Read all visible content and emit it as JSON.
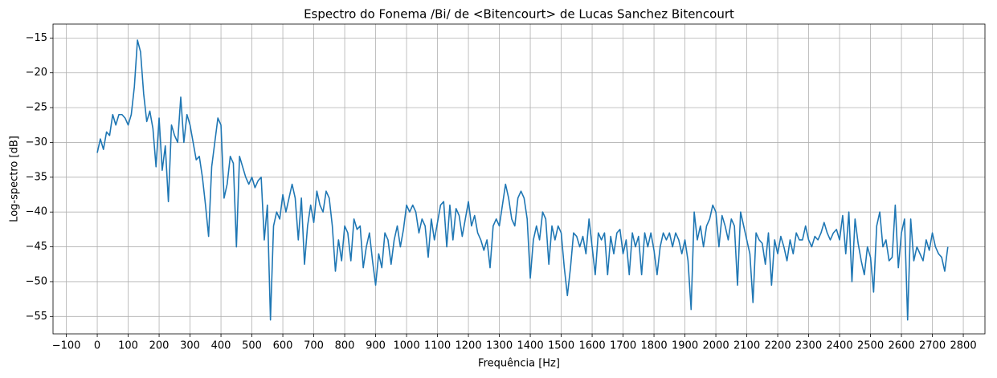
{
  "chart_data": {
    "type": "line",
    "title": "Espectro do Fonema /Bi/ de <Bitencourt> de Lucas Sanchez Bitencourt",
    "xlabel": "Frequência [Hz]",
    "ylabel": "Log-spectro [dB]",
    "xlim": [
      -143,
      2870
    ],
    "ylim": [
      -57.5,
      -13
    ],
    "xticks": [
      {
        "value": -100,
        "label": "−100"
      },
      0,
      100,
      200,
      300,
      400,
      500,
      600,
      700,
      800,
      900,
      1000,
      1100,
      1200,
      1300,
      1400,
      1500,
      1600,
      1700,
      1800,
      1900,
      2000,
      2100,
      2200,
      2300,
      2400,
      2500,
      2600,
      2700,
      2800
    ],
    "yticks": [
      {
        "value": -55,
        "label": "−55"
      },
      {
        "value": -50,
        "label": "−50"
      },
      {
        "value": -45,
        "label": "−45"
      },
      {
        "value": -40,
        "label": "−40"
      },
      {
        "value": -35,
        "label": "−35"
      },
      {
        "value": -30,
        "label": "−30"
      },
      {
        "value": -25,
        "label": "−25"
      },
      {
        "value": -20,
        "label": "−20"
      },
      {
        "value": -15,
        "label": "−15"
      }
    ],
    "grid": true,
    "color": "#1f77b4",
    "x": [
      0,
      10,
      20,
      30,
      40,
      50,
      60,
      70,
      80,
      90,
      100,
      110,
      120,
      130,
      140,
      150,
      160,
      170,
      180,
      190,
      200,
      210,
      220,
      230,
      240,
      250,
      260,
      270,
      280,
      290,
      300,
      310,
      320,
      330,
      340,
      350,
      360,
      370,
      380,
      390,
      400,
      410,
      420,
      430,
      440,
      450,
      460,
      470,
      480,
      490,
      500,
      510,
      520,
      530,
      540,
      550,
      560,
      570,
      580,
      590,
      600,
      610,
      620,
      630,
      640,
      650,
      660,
      670,
      680,
      690,
      700,
      710,
      720,
      730,
      740,
      750,
      760,
      770,
      780,
      790,
      800,
      810,
      820,
      830,
      840,
      850,
      860,
      870,
      880,
      890,
      900,
      910,
      920,
      930,
      940,
      950,
      960,
      970,
      980,
      990,
      1000,
      1010,
      1020,
      1030,
      1040,
      1050,
      1060,
      1070,
      1080,
      1090,
      1100,
      1110,
      1120,
      1130,
      1140,
      1150,
      1160,
      1170,
      1180,
      1190,
      1200,
      1210,
      1220,
      1230,
      1240,
      1250,
      1260,
      1270,
      1280,
      1290,
      1300,
      1310,
      1320,
      1330,
      1340,
      1350,
      1360,
      1370,
      1380,
      1390,
      1400,
      1410,
      1420,
      1430,
      1440,
      1450,
      1460,
      1470,
      1480,
      1490,
      1500,
      1510,
      1520,
      1530,
      1540,
      1550,
      1560,
      1570,
      1580,
      1590,
      1600,
      1610,
      1620,
      1630,
      1640,
      1650,
      1660,
      1670,
      1680,
      1690,
      1700,
      1710,
      1720,
      1730,
      1740,
      1750,
      1760,
      1770,
      1780,
      1790,
      1800,
      1810,
      1820,
      1830,
      1840,
      1850,
      1860,
      1870,
      1880,
      1890,
      1900,
      1910,
      1920,
      1930,
      1940,
      1950,
      1960,
      1970,
      1980,
      1990,
      2000,
      2010,
      2020,
      2030,
      2040,
      2050,
      2060,
      2070,
      2080,
      2090,
      2100,
      2110,
      2120,
      2130,
      2140,
      2150,
      2160,
      2170,
      2180,
      2190,
      2200,
      2210,
      2220,
      2230,
      2240,
      2250,
      2260,
      2270,
      2280,
      2290,
      2300,
      2310,
      2320,
      2330,
      2340,
      2350,
      2360,
      2370,
      2380,
      2390,
      2400,
      2410,
      2420,
      2430,
      2440,
      2450,
      2460,
      2470,
      2480,
      2490,
      2500,
      2510,
      2520,
      2530,
      2540,
      2550,
      2560,
      2570,
      2580,
      2590,
      2600,
      2610,
      2620,
      2630,
      2640,
      2650,
      2660,
      2670,
      2680,
      2690,
      2700,
      2710,
      2720,
      2730,
      2740,
      2750
    ],
    "values": [
      -31.5,
      -29.5,
      -31,
      -28.5,
      -29,
      -26,
      -27.5,
      -26,
      -26,
      -26.5,
      -27.5,
      -26,
      -22,
      -15.3,
      -17,
      -23,
      -27,
      -25.5,
      -28,
      -33.5,
      -26.5,
      -34,
      -30.5,
      -38.5,
      -27.5,
      -29,
      -30,
      -23.5,
      -30,
      -26,
      -27.5,
      -30,
      -32.5,
      -32,
      -35,
      -39,
      -43.5,
      -33.5,
      -30,
      -26.5,
      -27.5,
      -38,
      -36,
      -32,
      -33,
      -45,
      -32,
      -33.5,
      -35,
      -36,
      -35,
      -36.5,
      -35.5,
      -35,
      -44,
      -39,
      -55.5,
      -42,
      -40,
      -41,
      -37.5,
      -40,
      -38,
      -36,
      -38,
      -44,
      -38,
      -47.5,
      -42,
      -39,
      -41.5,
      -37,
      -39,
      -40,
      -37,
      -38,
      -42,
      -48.5,
      -44,
      -47,
      -42,
      -43,
      -47,
      -41,
      -42.5,
      -42,
      -48,
      -45,
      -43,
      -47,
      -50.5,
      -46,
      -48,
      -43,
      -44,
      -47.5,
      -44,
      -42,
      -45,
      -42.5,
      -39,
      -40,
      -39,
      -40,
      -43,
      -41,
      -42,
      -46.5,
      -41,
      -44,
      -41.5,
      -39,
      -38.5,
      -45,
      -39,
      -44,
      -39.5,
      -40.5,
      -43.5,
      -41,
      -38.5,
      -42,
      -40.5,
      -43,
      -44,
      -45.5,
      -44,
      -48,
      -42,
      -41,
      -42,
      -39,
      -36,
      -38,
      -41,
      -42,
      -38,
      -37,
      -38,
      -41,
      -49.5,
      -44,
      -42,
      -44,
      -40,
      -41,
      -47.5,
      -42,
      -44,
      -42,
      -43,
      -48,
      -52,
      -48,
      -43,
      -43.5,
      -45,
      -43.5,
      -46,
      -41,
      -45,
      -49,
      -43,
      -44,
      -43,
      -49,
      -43.5,
      -46,
      -43,
      -42.5,
      -46,
      -44,
      -49,
      -43,
      -45,
      -43.5,
      -49,
      -43,
      -45,
      -43,
      -45.5,
      -49,
      -45,
      -43,
      -44,
      -43,
      -45,
      -43,
      -44,
      -46,
      -44,
      -47,
      -54,
      -40,
      -44,
      -42,
      -45,
      -42,
      -41,
      -39,
      -40,
      -45,
      -40.5,
      -42,
      -44,
      -41,
      -42,
      -50.5,
      -40,
      -42,
      -44,
      -46,
      -53,
      -43,
      -44,
      -44.5,
      -47.5,
      -43,
      -50.5,
      -44,
      -46,
      -43.5,
      -45,
      -47,
      -44,
      -46,
      -43,
      -44,
      -44,
      -42,
      -44,
      -45,
      -43.5,
      -44,
      -43,
      -41.5,
      -43,
      -44,
      -43,
      -42.5,
      -44,
      -40.5,
      -46,
      -40,
      -50,
      -41,
      -44.5,
      -47,
      -49,
      -45,
      -46.5,
      -51.5,
      -42,
      -40,
      -45,
      -44,
      -47,
      -46.5,
      -39,
      -48,
      -43,
      -41,
      -55.5,
      -41,
      -47,
      -45,
      -46,
      -47,
      -44,
      -45.5,
      -43,
      -45,
      -46,
      -46.5,
      -48.5,
      -45
    ]
  }
}
